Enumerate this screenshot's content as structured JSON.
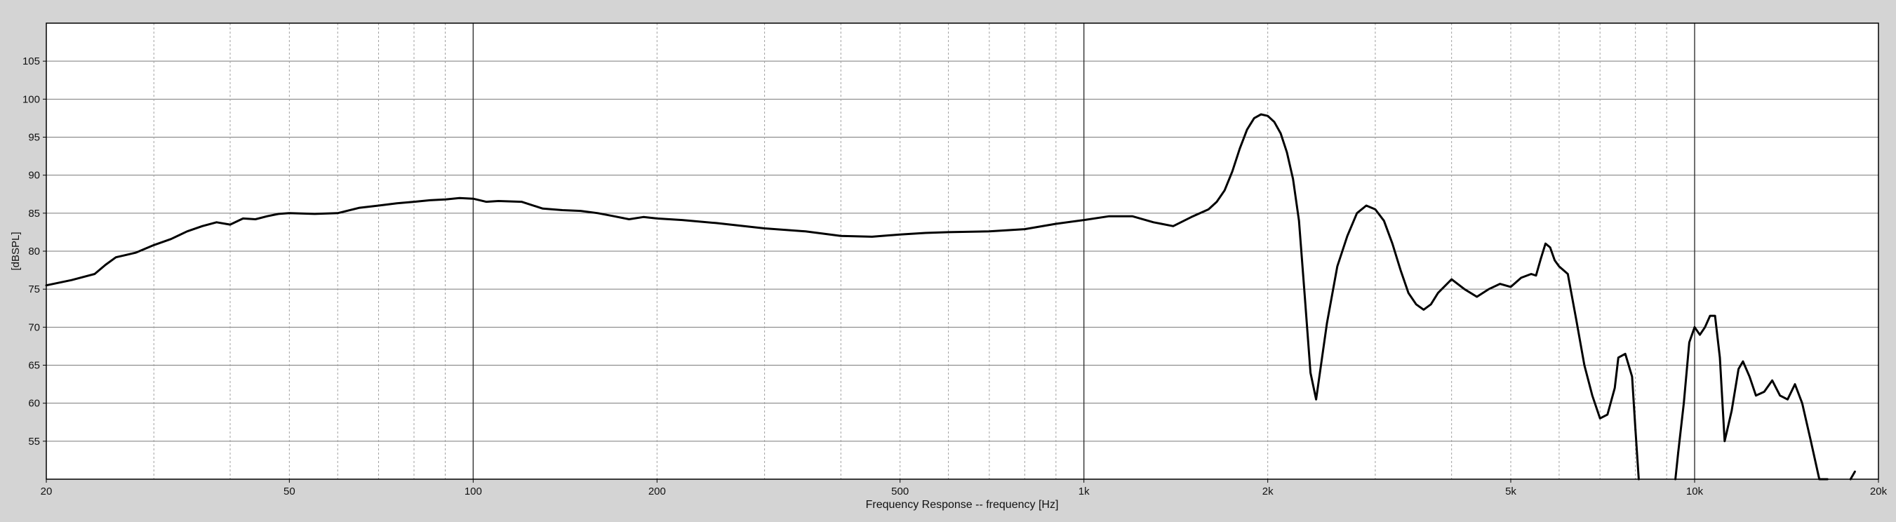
{
  "chart_data": {
    "type": "line",
    "title": "",
    "xlabel": "Frequency Response -- frequency [Hz]",
    "ylabel": "[dBSPL]",
    "xscale": "log",
    "xlim": [
      20,
      20000
    ],
    "ylim": [
      50,
      110
    ],
    "grid": true,
    "legend": "none",
    "colors": {
      "background": "#d4d4d4",
      "plot_bg": "#ffffff",
      "line": "#000000",
      "grid": "#888888"
    },
    "x_ticks": [
      {
        "value": 20,
        "label": "20"
      },
      {
        "value": 50,
        "label": "50"
      },
      {
        "value": 100,
        "label": "100"
      },
      {
        "value": 200,
        "label": "200"
      },
      {
        "value": 500,
        "label": "500"
      },
      {
        "value": 1000,
        "label": "1k"
      },
      {
        "value": 2000,
        "label": "2k"
      },
      {
        "value": 5000,
        "label": "5k"
      },
      {
        "value": 10000,
        "label": "10k"
      },
      {
        "value": 20000,
        "label": "20k"
      }
    ],
    "y_ticks": [
      {
        "value": 55,
        "label": "55"
      },
      {
        "value": 60,
        "label": "60"
      },
      {
        "value": 65,
        "label": "65"
      },
      {
        "value": 70,
        "label": "70"
      },
      {
        "value": 75,
        "label": "75"
      },
      {
        "value": 80,
        "label": "80"
      },
      {
        "value": 85,
        "label": "85"
      },
      {
        "value": 90,
        "label": "90"
      },
      {
        "value": 95,
        "label": "95"
      },
      {
        "value": 100,
        "label": "100"
      },
      {
        "value": 105,
        "label": "105"
      }
    ],
    "series": [
      {
        "x": [
          20,
          22,
          24,
          25,
          26,
          27,
          28,
          30,
          32,
          34,
          36,
          38,
          40,
          42,
          44,
          46,
          48,
          50,
          55,
          60,
          65,
          70,
          75,
          80,
          85,
          90,
          95,
          100,
          105,
          110,
          120,
          130,
          140,
          150,
          160,
          170,
          180,
          190,
          200,
          220,
          250,
          300,
          350,
          400,
          450,
          500,
          550,
          600,
          700,
          800,
          900,
          1000,
          1100,
          1200,
          1300,
          1400,
          1500,
          1600,
          1650,
          1700,
          1750,
          1800,
          1850,
          1900,
          1950,
          2000,
          2050,
          2100,
          2150,
          2200,
          2250,
          2300,
          2350,
          2400,
          2500,
          2600,
          2700,
          2800,
          2900,
          3000,
          3100,
          3200,
          3300,
          3400,
          3500,
          3600,
          3700,
          3800,
          4000,
          4200,
          4400,
          4600,
          4800,
          5000,
          5200,
          5400,
          5500,
          5600,
          5700,
          5800,
          5900,
          6000,
          6200,
          6400,
          6600,
          6800,
          7000,
          7200,
          7400,
          7500,
          7700,
          7900,
          8000
        ],
        "y": [
          75.5,
          76.2,
          77.0,
          78.2,
          79.2,
          79.5,
          79.8,
          80.8,
          81.6,
          82.6,
          83.3,
          83.8,
          83.5,
          84.3,
          84.2,
          84.6,
          84.9,
          85.0,
          84.9,
          85.0,
          85.7,
          86.0,
          86.3,
          86.5,
          86.7,
          86.8,
          87.0,
          86.9,
          86.5,
          86.6,
          86.5,
          85.6,
          85.4,
          85.3,
          85.0,
          84.6,
          84.2,
          84.5,
          84.3,
          84.1,
          83.7,
          83.0,
          82.6,
          82.0,
          81.9,
          82.2,
          82.4,
          82.5,
          82.6,
          82.9,
          83.6,
          84.1,
          84.6,
          84.6,
          83.8,
          83.3,
          84.5,
          85.5,
          86.5,
          88.0,
          90.5,
          93.5,
          96.0,
          97.5,
          98.0,
          97.8,
          97.0,
          95.5,
          93.0,
          89.5,
          84.0,
          74.0,
          64.0,
          60.5,
          70.5,
          78.0,
          82.0,
          85.0,
          86.0,
          85.5,
          84.0,
          81.0,
          77.5,
          74.5,
          73.0,
          72.3,
          73.0,
          74.5,
          76.3,
          75.0,
          74.0,
          75.0,
          75.7,
          75.3,
          76.5,
          77.0,
          76.8,
          79.0,
          81.0,
          80.5,
          78.8,
          78.0,
          77.0,
          71.0,
          65.0,
          61.0,
          58.0,
          58.5,
          62.0,
          66.0,
          66.5,
          63.5,
          56.5
        ]
      },
      {
        "x": [
          9400,
          9600,
          9800,
          10000,
          10200,
          10400,
          10600,
          10800,
          11000,
          11200,
          11500,
          11800,
          12000,
          12300,
          12600,
          13000,
          13400,
          13800,
          14200,
          14600,
          15000,
          15500,
          16000,
          16500
        ],
        "y": [
          53.5,
          60.0,
          68.0,
          70.0,
          69.0,
          70.0,
          71.5,
          71.5,
          66.0,
          55.0,
          59.0,
          64.5,
          65.5,
          63.5,
          61.0,
          61.5,
          63.0,
          61.0,
          60.5,
          62.5,
          60.0,
          55.0,
          50.0,
          50.0
        ]
      },
      {
        "x": [
          8000,
          8100
        ],
        "y": [
          56.5,
          50.0
        ]
      },
      {
        "x": [
          9300,
          9400
        ],
        "y": [
          50.0,
          53.5
        ]
      },
      {
        "x": [
          18000,
          18300
        ],
        "y": [
          50.0,
          51.0
        ]
      }
    ]
  }
}
